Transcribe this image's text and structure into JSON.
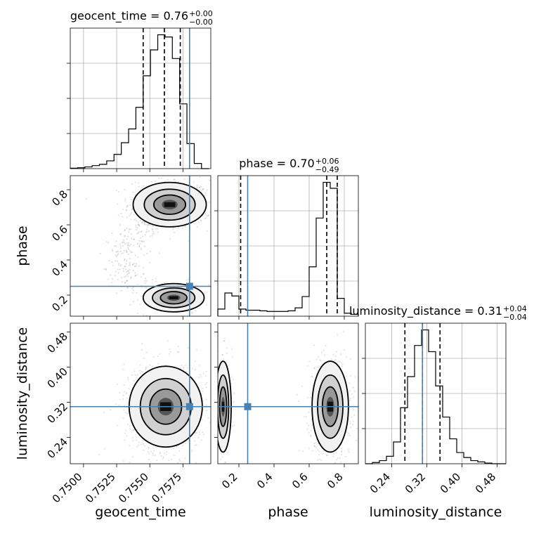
{
  "chart_data": {
    "type": "corner",
    "parameters": [
      "geocent_time",
      "phase",
      "luminosity_distance"
    ],
    "truths": {
      "geocent_time": 0.758,
      "phase": 0.25,
      "luminosity_distance": 0.31
    },
    "truth_color": "#4682b4",
    "ranges": {
      "geocent_time": [
        0.749,
        0.7596
      ],
      "phase": [
        0.08,
        0.88
      ],
      "luminosity_distance": [
        0.18,
        0.5
      ]
    },
    "ticks": {
      "geocent_time": [
        "0.7500",
        "0.7525",
        "0.7550",
        "0.7575"
      ],
      "phase": [
        "0.2",
        "0.4",
        "0.6",
        "0.8"
      ],
      "luminosity_distance": [
        "0.24",
        "0.32",
        "0.40",
        "0.48"
      ]
    },
    "marginals": [
      {
        "parameter": "geocent_time",
        "title_main": "geocent_time = 0.76",
        "title_sup": "+0.00",
        "title_sub": "−0.00",
        "quantiles": [
          0.7545,
          0.7561,
          0.7573
        ],
        "bin_edges": [
          0.749,
          0.74955,
          0.7501,
          0.75065,
          0.7512,
          0.75175,
          0.7523,
          0.75285,
          0.7534,
          0.75395,
          0.7545,
          0.75505,
          0.7556,
          0.75615,
          0.7567,
          0.75725,
          0.7578,
          0.75835,
          0.7589,
          0.75945
        ],
        "counts": [
          1,
          2,
          4,
          7,
          10,
          18,
          33,
          60,
          92,
          142,
          215,
          275,
          310,
          305,
          255,
          150,
          58,
          12,
          0
        ]
      },
      {
        "parameter": "phase",
        "title_main": "phase = 0.70",
        "title_sup": "+0.06",
        "title_sub": "−0.49",
        "quantiles": [
          0.21,
          0.7,
          0.76
        ],
        "bin_edges": [
          0.08,
          0.12,
          0.16,
          0.2,
          0.24,
          0.28,
          0.32,
          0.36,
          0.4,
          0.44,
          0.48,
          0.52,
          0.56,
          0.6,
          0.64,
          0.68,
          0.72,
          0.76,
          0.8,
          0.84,
          0.88
        ],
        "counts": [
          12,
          39,
          34,
          12,
          10,
          10,
          9,
          8,
          8,
          8,
          9,
          14,
          33,
          83,
          165,
          225,
          215,
          30,
          5,
          3
        ]
      },
      {
        "parameter": "luminosity_distance",
        "title_main": "luminosity_distance = 0.31",
        "title_sup": "+0.04",
        "title_sub": "−0.04",
        "quantiles": [
          0.27,
          0.31,
          0.35
        ],
        "bin_edges": [
          0.18,
          0.196,
          0.212,
          0.228,
          0.244,
          0.26,
          0.276,
          0.292,
          0.308,
          0.324,
          0.34,
          0.356,
          0.372,
          0.388,
          0.404,
          0.42,
          0.436,
          0.452,
          0.468,
          0.484,
          0.5
        ],
        "counts": [
          0,
          2,
          5,
          12,
          35,
          90,
          140,
          190,
          215,
          180,
          125,
          75,
          40,
          18,
          10,
          5,
          3,
          1,
          0,
          0
        ]
      }
    ],
    "joint": [
      {
        "x": "geocent_time",
        "y": "phase",
        "modes": [
          {
            "cx": 0.7565,
            "cy": 0.715,
            "sx": 0.0012,
            "sy": 0.055,
            "weight": 0.7
          },
          {
            "cx": 0.7568,
            "cy": 0.185,
            "sx": 0.001,
            "sy": 0.035,
            "weight": 0.2
          }
        ]
      },
      {
        "x": "geocent_time",
        "y": "luminosity_distance",
        "modes": [
          {
            "cx": 0.7562,
            "cy": 0.31,
            "sx": 0.0012,
            "sy": 0.04,
            "weight": 1.0
          }
        ]
      },
      {
        "x": "phase",
        "y": "luminosity_distance",
        "modes": [
          {
            "cx": 0.72,
            "cy": 0.31,
            "sx": 0.045,
            "sy": 0.045,
            "weight": 0.75
          },
          {
            "cx": 0.11,
            "cy": 0.31,
            "sx": 0.02,
            "sy": 0.045,
            "weight": 0.2
          }
        ]
      }
    ]
  }
}
